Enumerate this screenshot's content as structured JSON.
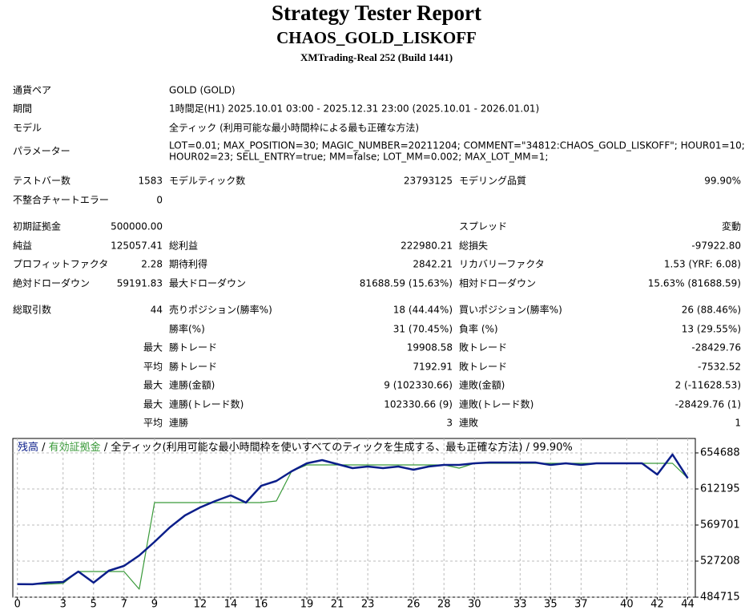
{
  "header": {
    "title": "Strategy Tester Report",
    "subtitle": "CHAOS_GOLD_LISKOFF",
    "server": "XMTrading-Real 252 (Build 1441)"
  },
  "info": [
    {
      "label": "通貨ペア",
      "lines": [
        "GOLD (GOLD)"
      ]
    },
    {
      "label": "期間",
      "lines": [
        "1時間足(H1) 2025.10.01 03:00 - 2025.12.31 23:00 (2025.10.01 - 2026.01.01)"
      ]
    },
    {
      "label": "モデル",
      "lines": [
        "全ティック (利用可能な最小時間枠による最も正確な方法)"
      ]
    },
    {
      "label": "パラメーター",
      "lines": [
        "LOT=0.01; MAX_POSITION=30; MAGIC_NUMBER=20211204; COMMENT=\"34812:CHAOS_GOLD_LISKOFF\"; HOUR01=10;",
        "HOUR02=23; SELL_ENTRY=true; MM=false; LOT_MM=0.002; MAX_LOT_MM=1;"
      ]
    }
  ],
  "stats": [
    [
      "テストバー数",
      "1583",
      "モデルティック数",
      "23793125",
      "モデリング品質",
      "99.90%"
    ],
    [
      "不整合チャートエラー",
      "0",
      null,
      null,
      null,
      null
    ],
    [
      "初期証拠金",
      "500000.00",
      null,
      null,
      "スプレッド",
      "変動"
    ],
    [
      "純益",
      "125057.41",
      "総利益",
      "222980.21",
      "総損失",
      "-97922.80"
    ],
    [
      "プロフィットファクタ",
      "2.28",
      "期待利得",
      "2842.21",
      "リカバリーファクタ",
      "1.53 (YRF: 6.08)"
    ],
    [
      "絶対ドローダウン",
      "59191.83",
      "最大ドローダウン",
      "81688.59 (15.63%)",
      "相対ドローダウン",
      "15.63% (81688.59)"
    ],
    [
      "総取引数",
      "44",
      "売りポジション(勝率%)",
      "18 (44.44%)",
      "買いポジション(勝率%)",
      "26 (88.46%)"
    ],
    [
      null,
      null,
      "勝率(%)",
      "31 (70.45%)",
      "負率 (%)",
      "13 (29.55%)"
    ],
    [
      null,
      "最大",
      "勝トレード",
      "19908.58",
      "敗トレード",
      "-28429.76"
    ],
    [
      null,
      "平均",
      "勝トレード",
      "7192.91",
      "敗トレード",
      "-7532.52"
    ],
    [
      null,
      "最大",
      "連勝(金額)",
      "9 (102330.66)",
      "連敗(金額)",
      "2 (-11628.53)"
    ],
    [
      null,
      "最大",
      "連勝(トレード数)",
      "102330.66 (9)",
      "連敗(トレード数)",
      "-28429.76 (1)"
    ],
    [
      null,
      "平均",
      "連勝",
      "3",
      "連敗",
      "1"
    ]
  ],
  "chart_data": {
    "type": "line",
    "separator": " / ",
    "model": "全ティック(利用可能な最小時間枠を使いすべてのティックを生成する、最も正確な方法)",
    "quality": "99.90%",
    "x": [
      0,
      1,
      2,
      3,
      4,
      5,
      6,
      7,
      8,
      9,
      10,
      11,
      12,
      13,
      14,
      15,
      16,
      17,
      18,
      19,
      20,
      21,
      22,
      23,
      24,
      25,
      26,
      27,
      28,
      29,
      30,
      31,
      32,
      33,
      34,
      35,
      36,
      37,
      38,
      39,
      40,
      41,
      42,
      43,
      44
    ],
    "series": [
      {
        "name": "残高",
        "color": "#0b1e8a",
        "values": [
          500000,
          499900,
          501800,
          502700,
          514900,
          501800,
          515900,
          521500,
          533800,
          549900,
          566900,
          581000,
          590500,
          598000,
          604600,
          596100,
          615900,
          621600,
          633000,
          642400,
          646200,
          641500,
          636700,
          638600,
          636700,
          638600,
          634900,
          638600,
          640500,
          640500,
          642400,
          643400,
          643400,
          643400,
          643400,
          640500,
          642400,
          640500,
          642400,
          642400,
          642400,
          642400,
          629200,
          652800,
          625057
        ]
      },
      {
        "name": "有効証拠金",
        "color": "#3a9a3a",
        "values": [
          500000,
          500000,
          500000,
          501000,
          514900,
          514900,
          514900,
          514900,
          494200,
          596100,
          596100,
          596100,
          596100,
          596100,
          596100,
          596100,
          596100,
          598000,
          633000,
          640500,
          640500,
          640500,
          640500,
          640500,
          640500,
          640500,
          640500,
          640500,
          640500,
          636700,
          642400,
          642400,
          642400,
          642400,
          642400,
          642400,
          642400,
          642400,
          642400,
          642400,
          642400,
          642400,
          642400,
          642400,
          625057
        ]
      }
    ],
    "xlim": [
      -0.3,
      44.5
    ],
    "xticks": [
      0,
      3,
      5,
      7,
      9,
      12,
      14,
      16,
      19,
      21,
      23,
      26,
      28,
      30,
      33,
      35,
      37,
      40,
      42,
      44
    ],
    "ylim": [
      484715,
      671685
    ],
    "yticks": [
      484715,
      527208,
      569701,
      612195,
      654688
    ],
    "grid": true
  }
}
